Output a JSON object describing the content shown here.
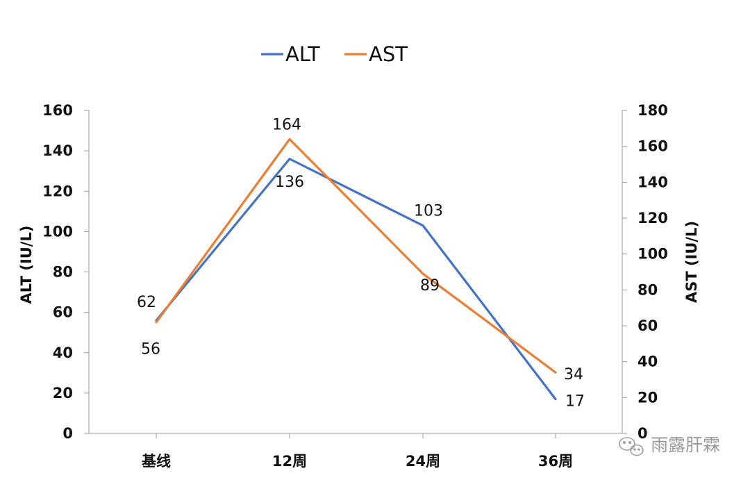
{
  "chart_data": {
    "type": "line",
    "categories": [
      "基线",
      "12周",
      "24周",
      "36周"
    ],
    "series": [
      {
        "name": "ALT",
        "axis": "left",
        "values": [
          56,
          136,
          103,
          17
        ],
        "color": "#4472C4"
      },
      {
        "name": "AST",
        "axis": "right",
        "values": [
          62,
          164,
          89,
          34
        ],
        "color": "#ED7D31"
      }
    ],
    "title": "",
    "ylabel_left": "ALT (IU/L)",
    "ylabel_right": "AST (IU/L)",
    "ylim_left": [
      0,
      160
    ],
    "ylim_right": [
      0,
      180
    ],
    "yticks_left": [
      0,
      20,
      40,
      60,
      80,
      100,
      120,
      140,
      160
    ],
    "yticks_right": [
      0,
      20,
      40,
      60,
      80,
      100,
      120,
      140,
      160,
      180
    ],
    "grid": false,
    "legend_position": "top-center"
  },
  "watermark": {
    "text": "雨露肝霖",
    "icon": "wechat-icon"
  }
}
